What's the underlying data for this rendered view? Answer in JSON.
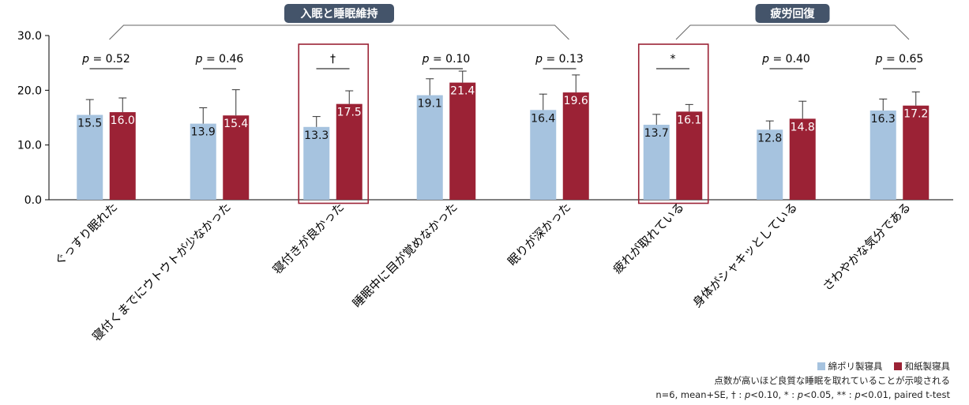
{
  "chart_data": {
    "type": "bar",
    "ylim": [
      0,
      30
    ],
    "yticks": [
      "0.0",
      "10.0",
      "20.0",
      "30.0"
    ],
    "grid": false,
    "categories": [
      "ぐっすり眠れた",
      "寝付くまでにウトウトが少なかった",
      "寝付きが良かった",
      "睡眠中に目が覚めなかった",
      "眠りが深かった",
      "疲れが取れている",
      "身体がシャキッとしている",
      "さわやかな気分である"
    ],
    "series": [
      {
        "name": "綿ポリ製寝具",
        "color": "#a6c3df",
        "values": [
          15.5,
          13.9,
          13.3,
          19.1,
          16.4,
          13.7,
          12.8,
          16.3
        ],
        "labels": [
          "15.5",
          "13.9",
          "13.3",
          "19.1",
          "16.4",
          "13.7",
          "12.8",
          "16.3"
        ],
        "se": [
          2.8,
          2.9,
          1.9,
          3.0,
          2.9,
          1.9,
          1.6,
          2.1
        ]
      },
      {
        "name": "和紙製寝具",
        "color": "#9b2235",
        "values": [
          16.0,
          15.4,
          17.5,
          21.4,
          19.6,
          16.1,
          14.8,
          17.2
        ],
        "labels": [
          "16.0",
          "15.4",
          "17.5",
          "21.4",
          "19.6",
          "16.1",
          "14.8",
          "17.2"
        ],
        "se": [
          2.6,
          4.7,
          2.4,
          2.1,
          3.2,
          1.3,
          3.2,
          2.5
        ]
      }
    ],
    "annotations": [
      {
        "prefix": "p",
        "text": " = 0.52"
      },
      {
        "prefix": "p",
        "text": " = 0.46"
      },
      {
        "prefix": "",
        "text": "†"
      },
      {
        "prefix": "p",
        "text": " = 0.10"
      },
      {
        "prefix": "p",
        "text": " = 0.13"
      },
      {
        "prefix": "",
        "text": "*"
      },
      {
        "prefix": "p",
        "text": " = 0.40"
      },
      {
        "prefix": "p",
        "text": " = 0.65"
      }
    ],
    "highlighted_categories": [
      2,
      5
    ],
    "groups": [
      {
        "label": "入眠と睡眠維持",
        "from": 0,
        "to": 4
      },
      {
        "label": "疲労回復",
        "from": 5,
        "to": 7
      }
    ],
    "group_label_color": "#44546a",
    "highlight_color": "#9b2235"
  },
  "notes": {
    "line1": "点数が高いほど良質な睡眠を取れていることが示唆される",
    "line2_parts": [
      "n=6, mean+SE, † : ",
      "p",
      "<0.10, * : ",
      "p",
      "<0.05, ** : ",
      "p",
      "<0.01, paired t-test"
    ]
  }
}
